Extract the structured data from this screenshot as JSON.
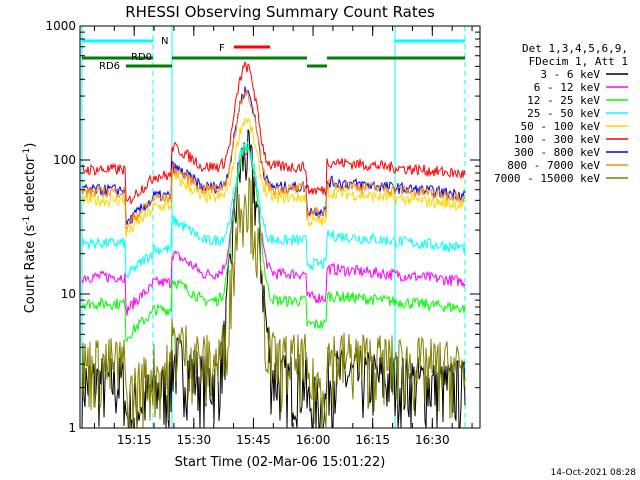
{
  "chart_data": {
    "type": "line",
    "title": "RHESSI Observing Summary Count Rates",
    "xlabel": "Start Time (02-Mar-06 15:01:22)",
    "ylabel_main": "Count Rate (s",
    "ylabel_sup1": "-1",
    "ylabel_mid": " detector",
    "ylabel_sup2": "-1",
    "ylabel_end": ")",
    "y_scale": "log",
    "ylim": [
      1,
      1000
    ],
    "xlim": [
      "15:01:22",
      "16:42:00"
    ],
    "x_ticks": [
      "15:15",
      "15:30",
      "15:45",
      "16:00",
      "16:15",
      "16:30"
    ],
    "y_ticks": [
      "1",
      "10",
      "100",
      "1000"
    ],
    "legend_header": [
      "Det 1,3,4,5,6,9,",
      "FDecim 1, Att 1"
    ],
    "legend_placement": "right",
    "date_stamp": "14-Oct-2021 08:28",
    "flags": {
      "night_label": "N",
      "flare_label": "F",
      "rd0_label": "RD0",
      "rd6_label": "RD6"
    },
    "series": [
      {
        "name": "3 - 6 keV",
        "color": "#000000",
        "baseline": 2.2,
        "peak": 110
      },
      {
        "name": "6 - 12 keV",
        "color": "#ff00ff",
        "baseline": 13.5,
        "peak": 120
      },
      {
        "name": "12 - 25 keV",
        "color": "#00ff00",
        "baseline": 8.5,
        "peak": 125
      },
      {
        "name": "25 - 50 keV",
        "color": "#00ffff",
        "baseline": 24,
        "peak": 130
      },
      {
        "name": "50 - 100 keV",
        "color": "#ffd700",
        "baseline": 50,
        "peak": 200
      },
      {
        "name": "100 - 300 keV",
        "color": "#ff0000",
        "baseline": 85,
        "peak": 500
      },
      {
        "name": "300 - 800 keV",
        "color": "#0000ff",
        "baseline": 60,
        "peak": 330
      },
      {
        "name": "800 - 7000 keV",
        "color": "#ff8c00",
        "baseline": 58,
        "peak": 320
      },
      {
        "name": "7000 - 15000 keV",
        "color": "#808000",
        "baseline": 3.0,
        "peak": 60
      }
    ]
  }
}
